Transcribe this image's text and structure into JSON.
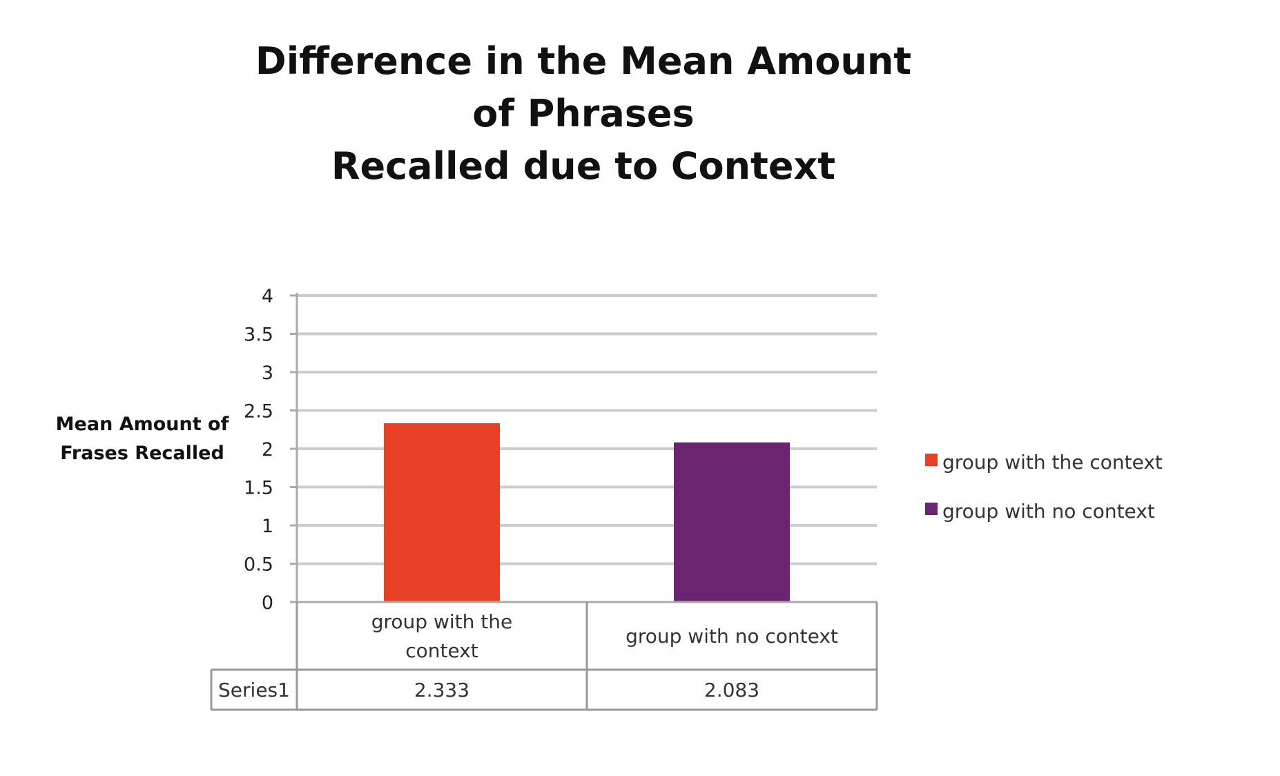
{
  "chart_data": {
    "type": "bar",
    "title_lines": [
      "Difference in the Mean Amount",
      "of Phrases",
      "Recalled due to Context"
    ],
    "ylabel_lines": [
      "Mean Amount of",
      "Frases Recalled"
    ],
    "xlabel": "",
    "categories": [
      {
        "lines": [
          "group with the",
          "context"
        ]
      },
      {
        "lines": [
          "group with no context"
        ]
      }
    ],
    "series": [
      {
        "name": "Series1",
        "values": [
          2.333,
          2.083
        ],
        "value_labels": [
          "2.333",
          "2.083"
        ]
      }
    ],
    "ylim": [
      0,
      4
    ],
    "ytick_values": [
      0,
      0.5,
      1,
      1.5,
      2,
      2.5,
      3,
      3.5,
      4
    ],
    "ytick_labels": [
      "0",
      "0.5",
      "1",
      "1.5",
      "2",
      "2.5",
      "3",
      "3.5",
      "4"
    ],
    "grid": true,
    "data_table": true,
    "legend": {
      "placement": "right",
      "entries": [
        {
          "label": "group with the context",
          "color": "#e84025"
        },
        {
          "label": "group with no context",
          "color": "#6b2472"
        }
      ]
    },
    "bar_colors": [
      "#e84025",
      "#6b2472"
    ]
  }
}
